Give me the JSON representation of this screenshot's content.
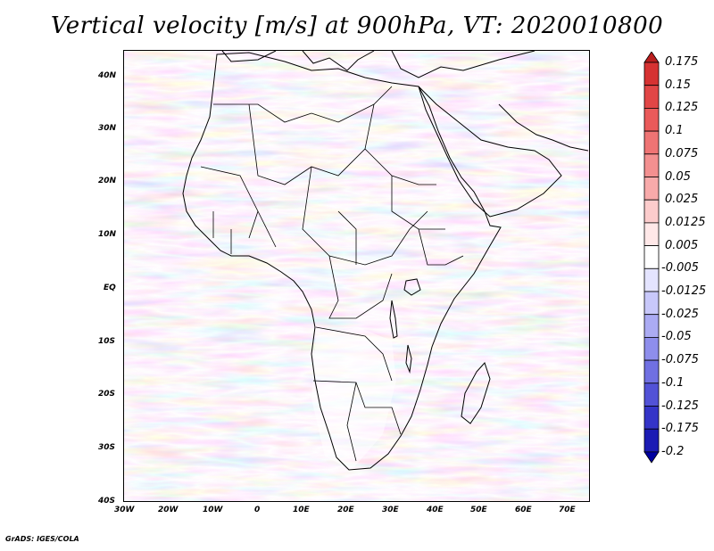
{
  "title": "Vertical velocity [m/s] at 900hPa, VT: 2020010800",
  "footer": "GrADS: IGES/COLA",
  "map": {
    "lon_range": [
      -30,
      75
    ],
    "lat_range": [
      -40,
      45
    ],
    "lat_labels": [
      "40N",
      "30N",
      "20N",
      "10N",
      "EQ",
      "10S",
      "20S",
      "30S",
      "40S"
    ],
    "lon_labels": [
      "30W",
      "20W",
      "10W",
      "0",
      "10E",
      "20E",
      "30E",
      "40E",
      "50E",
      "60E",
      "70E"
    ]
  },
  "colorbar": {
    "labels": [
      "0.175",
      "0.15",
      "0.125",
      "0.1",
      "0.075",
      "0.05",
      "0.025",
      "0.0125",
      "0.005",
      "-0.005",
      "-0.0125",
      "-0.025",
      "-0.05",
      "-0.075",
      "-0.1",
      "-0.125",
      "-0.175",
      "-0.2"
    ],
    "colors": [
      "#ba1e1e",
      "#d63232",
      "#e14646",
      "#ea5a5a",
      "#ef7474",
      "#f39090",
      "#f8aaaa",
      "#fccccc",
      "#ffe8e8",
      "#ffffff",
      "#e4e4ff",
      "#c8c8fa",
      "#ababf3",
      "#8e8eec",
      "#7070e2",
      "#5252d7",
      "#3434c8",
      "#1c1cb4",
      "#0000a0"
    ]
  }
}
